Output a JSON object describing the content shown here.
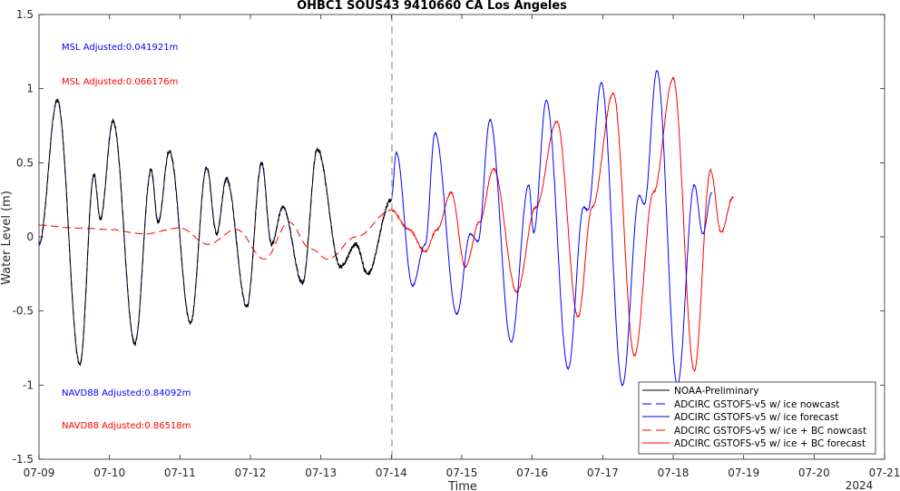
{
  "chart_data": {
    "type": "line",
    "title": "OHBC1 SOUS43 9410660 CA Los Angeles",
    "xlabel": "Time",
    "ylabel": "Water Level (m)",
    "xlim": [
      "07-09",
      "07-21"
    ],
    "ylim": [
      -1.5,
      1.5
    ],
    "x_ticks": [
      "07-09",
      "07-10",
      "07-11",
      "07-12",
      "07-13",
      "07-14",
      "07-15",
      "07-16",
      "07-17",
      "07-18",
      "07-19",
      "07-20",
      "07-21"
    ],
    "x_year_label": "2024",
    "y_ticks": [
      "-1.5",
      "-1",
      "-0.5",
      "0",
      "0.5",
      "1",
      "1.5"
    ],
    "y_tick_values": [
      -1.5,
      -1,
      -0.5,
      0,
      0.5,
      1,
      1.5
    ],
    "nowcast_forecast_divider_day": 5,
    "annotations": [
      {
        "text": "MSL Adjusted:0.041921m",
        "color": "#0000ff"
      },
      {
        "text": "MSL Adjusted:0.066176m",
        "color": "#ff0000"
      },
      {
        "text": "NAVD88 Adjusted:0.84092m",
        "color": "#0000ff"
      },
      {
        "text": "NAVD88 Adjusted:0.86518m",
        "color": "#ff0000"
      }
    ],
    "legend_position": "bottom-right",
    "series": [
      {
        "name": "NOAA-Preliminary",
        "color": "#000000",
        "dash": "solid",
        "x_range_days": [
          0,
          5
        ]
      },
      {
        "name": "ADCIRC GSTOFS-v5 w/ ice nowcast",
        "color": "#0000ff",
        "dash": "dashed",
        "x_range_days": [
          0,
          5
        ]
      },
      {
        "name": "ADCIRC GSTOFS-v5 w/ ice forecast",
        "color": "#0000ff",
        "dash": "solid",
        "x_range_days": [
          5,
          12
        ]
      },
      {
        "name": "ADCIRC GSTOFS-v5 w/ ice + BC nowcast",
        "color": "#ff0000",
        "dash": "dashed",
        "x_range_days": [
          0,
          5
        ]
      },
      {
        "name": "ADCIRC GSTOFS-v5 w/ ice + BC forecast",
        "color": "#ff0000",
        "dash": "solid",
        "x_range_days": [
          5,
          12
        ]
      }
    ],
    "tidal_extrema": {
      "obs_nowcast": [
        [
          0.0,
          -0.05
        ],
        [
          0.26,
          0.92
        ],
        [
          0.58,
          -0.86
        ],
        [
          0.78,
          0.42
        ],
        [
          0.87,
          0.12
        ],
        [
          1.05,
          0.78
        ],
        [
          1.36,
          -0.72
        ],
        [
          1.59,
          0.45
        ],
        [
          1.69,
          0.1
        ],
        [
          1.85,
          0.58
        ],
        [
          2.15,
          -0.58
        ],
        [
          2.38,
          0.47
        ],
        [
          2.52,
          0.02
        ],
        [
          2.66,
          0.39
        ],
        [
          2.95,
          -0.47
        ],
        [
          3.16,
          0.5
        ],
        [
          3.3,
          -0.05
        ],
        [
          3.46,
          0.2
        ],
        [
          3.74,
          -0.31
        ],
        [
          3.95,
          0.59
        ],
        [
          4.28,
          -0.2
        ],
        [
          4.5,
          -0.05
        ],
        [
          4.66,
          -0.25
        ],
        [
          5.0,
          0.25
        ]
      ],
      "blue_forecast": [
        [
          5.0,
          0.25
        ],
        [
          5.07,
          0.57
        ],
        [
          5.3,
          -0.33
        ],
        [
          5.48,
          -0.05
        ],
        [
          5.62,
          0.7
        ],
        [
          5.93,
          -0.52
        ],
        [
          6.12,
          0.02
        ],
        [
          6.23,
          -0.03
        ],
        [
          6.4,
          0.79
        ],
        [
          6.7,
          -0.71
        ],
        [
          6.95,
          0.35
        ],
        [
          7.02,
          0.03
        ],
        [
          7.2,
          0.92
        ],
        [
          7.51,
          -0.89
        ],
        [
          7.73,
          0.2
        ],
        [
          7.79,
          0.18
        ],
        [
          7.98,
          1.04
        ],
        [
          8.28,
          -1.0
        ],
        [
          8.52,
          0.28
        ],
        [
          8.59,
          0.22
        ],
        [
          8.77,
          1.12
        ],
        [
          9.06,
          -1.0
        ],
        [
          9.3,
          0.35
        ],
        [
          9.42,
          0.02
        ],
        [
          9.55,
          0.3
        ]
      ],
      "red_nowcast": [
        [
          0.0,
          0.08
        ],
        [
          0.5,
          0.06
        ],
        [
          1.0,
          0.05
        ],
        [
          1.5,
          0.02
        ],
        [
          2.0,
          0.06
        ],
        [
          2.4,
          -0.05
        ],
        [
          2.8,
          0.05
        ],
        [
          3.2,
          -0.15
        ],
        [
          3.55,
          0.1
        ],
        [
          3.85,
          -0.08
        ],
        [
          4.1,
          -0.15
        ],
        [
          4.5,
          0.0
        ],
        [
          5.0,
          0.18
        ]
      ],
      "red_forecast": [
        [
          5.0,
          0.18
        ],
        [
          5.25,
          0.05
        ],
        [
          5.48,
          -0.1
        ],
        [
          5.65,
          0.05
        ],
        [
          5.85,
          0.3
        ],
        [
          6.05,
          -0.2
        ],
        [
          6.25,
          0.1
        ],
        [
          6.45,
          0.46
        ],
        [
          6.78,
          -0.37
        ],
        [
          7.05,
          0.2
        ],
        [
          7.35,
          0.78
        ],
        [
          7.65,
          -0.54
        ],
        [
          7.85,
          0.2
        ],
        [
          8.15,
          0.97
        ],
        [
          8.45,
          -0.8
        ],
        [
          8.72,
          0.3
        ],
        [
          9.0,
          1.07
        ],
        [
          9.3,
          -0.9
        ],
        [
          9.53,
          0.45
        ],
        [
          9.68,
          0.03
        ],
        [
          9.85,
          0.27
        ]
      ]
    }
  }
}
